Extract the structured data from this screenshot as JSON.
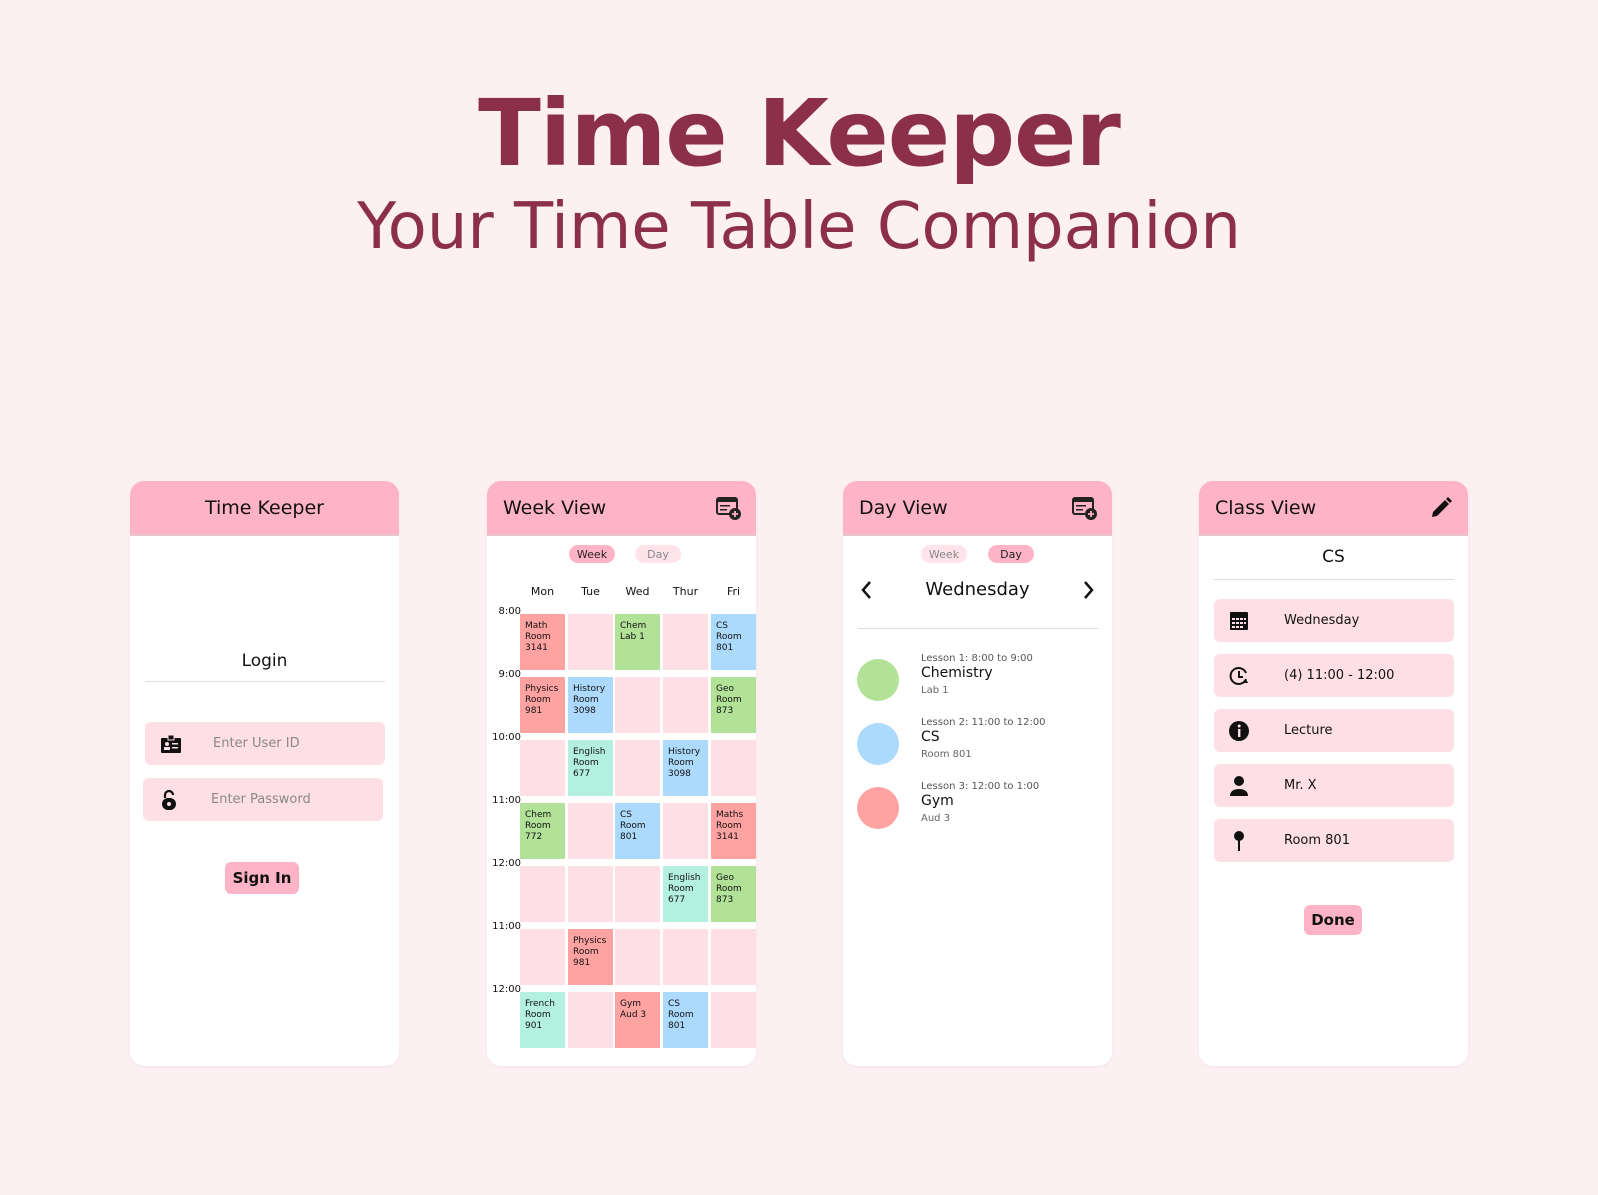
{
  "hero": {
    "title": "Time Keeper",
    "subtitle": "Your Time Table Companion"
  },
  "colors": {
    "background": "#fcf0f3",
    "brand": "#8b3048",
    "header": "#ffb3c6",
    "cell": "#ffdfe6",
    "red": "#ffa2a2",
    "green": "#b2e298",
    "blue": "#acdafc",
    "teal": "#b3f0e0"
  },
  "login": {
    "title": "Time Keeper",
    "heading": "Login",
    "user_placeholder": "Enter User ID",
    "password_placeholder": "Enter Password",
    "sign_in": "Sign In",
    "user_icon": "id-card-icon",
    "password_icon": "lock-icon"
  },
  "week": {
    "title": "Week View",
    "add_icon": "calendar-add-icon",
    "tab_week": "Week",
    "tab_day": "Day",
    "active_tab": "Week",
    "days": [
      "Mon",
      "Tue",
      "Wed",
      "Thur",
      "Fri"
    ],
    "times": [
      "8:00",
      "9:00",
      "10:00",
      "11:00",
      "12:00",
      "11:00",
      "12:00"
    ],
    "rows": [
      [
        {
          "c": "red",
          "t": "Math\nRoom\n3141"
        },
        {
          "c": "cell",
          "t": ""
        },
        {
          "c": "green",
          "t": "Chem\nLab 1"
        },
        {
          "c": "cell",
          "t": ""
        },
        {
          "c": "blue",
          "t": "CS\nRoom\n801"
        }
      ],
      [
        {
          "c": "red",
          "t": "Physics\nRoom\n981"
        },
        {
          "c": "blue",
          "t": "History\nRoom\n3098"
        },
        {
          "c": "cell",
          "t": ""
        },
        {
          "c": "cell",
          "t": ""
        },
        {
          "c": "green",
          "t": "Geo\nRoom\n873"
        }
      ],
      [
        {
          "c": "cell",
          "t": ""
        },
        {
          "c": "teal",
          "t": "English\nRoom\n677"
        },
        {
          "c": "cell",
          "t": ""
        },
        {
          "c": "blue",
          "t": "History\nRoom\n3098"
        },
        {
          "c": "cell",
          "t": ""
        }
      ],
      [
        {
          "c": "green",
          "t": "Chem\nRoom\n772"
        },
        {
          "c": "cell",
          "t": ""
        },
        {
          "c": "blue",
          "t": "CS\nRoom\n801"
        },
        {
          "c": "cell",
          "t": ""
        },
        {
          "c": "red",
          "t": "Maths\nRoom\n3141"
        }
      ],
      [
        {
          "c": "cell",
          "t": ""
        },
        {
          "c": "cell",
          "t": ""
        },
        {
          "c": "cell",
          "t": ""
        },
        {
          "c": "teal",
          "t": "English\nRoom\n677"
        },
        {
          "c": "green",
          "t": "Geo\nRoom\n873"
        }
      ],
      [
        {
          "c": "cell",
          "t": ""
        },
        {
          "c": "red",
          "t": "Physics\nRoom\n981"
        },
        {
          "c": "cell",
          "t": ""
        },
        {
          "c": "cell",
          "t": ""
        },
        {
          "c": "cell",
          "t": ""
        }
      ],
      [
        {
          "c": "teal",
          "t": "French\nRoom\n901"
        },
        {
          "c": "cell",
          "t": ""
        },
        {
          "c": "red",
          "t": "Gym\nAud 3"
        },
        {
          "c": "blue",
          "t": "CS\nRoom\n801"
        },
        {
          "c": "cell",
          "t": ""
        }
      ]
    ]
  },
  "dayview": {
    "title": "Day View",
    "add_icon": "calendar-add-icon",
    "tab_week": "Week",
    "tab_day": "Day",
    "active_tab": "Day",
    "day": "Wednesday",
    "lessons": [
      {
        "time": "Lesson 1: 8:00 to 9:00",
        "name": "Chemistry",
        "room": "Lab 1",
        "color": "#b2e298"
      },
      {
        "time": "Lesson 2: 11:00 to 12:00",
        "name": "CS",
        "room": "Room 801",
        "color": "#acdafc"
      },
      {
        "time": "Lesson 3: 12:00 to 1:00",
        "name": "Gym",
        "room": "Aud 3",
        "color": "#ffa2a2"
      }
    ]
  },
  "classview": {
    "title": "Class View",
    "edit_icon": "pencil-icon",
    "name": "CS",
    "day": "Wednesday",
    "time": "(4) 11:00 - 12:00",
    "type": "Lecture",
    "teacher": "Mr. X",
    "room": "Room 801",
    "done": "Done"
  }
}
